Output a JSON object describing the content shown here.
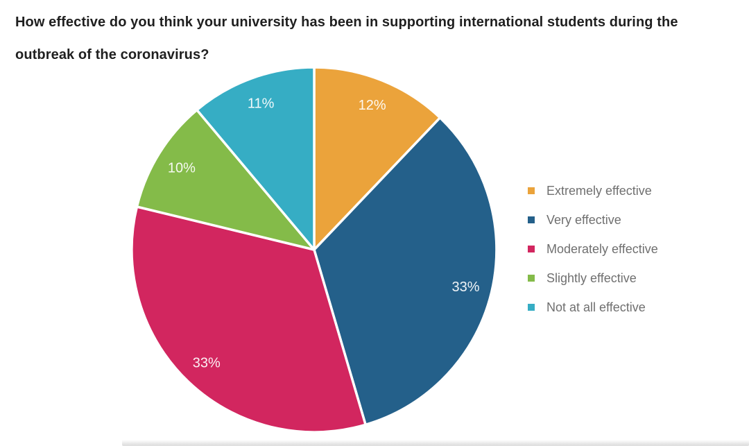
{
  "header": {
    "title_line1": "How effective do you think your university has been in supporting international students during the",
    "title_line2": "outbreak of the coronavirus?"
  },
  "chart_data": {
    "type": "pie",
    "title": "How effective do you think your university has been in supporting international students during the outbreak of the coronavirus?",
    "labels": [
      "Extremely effective",
      "Very effective",
      "Moderately effective",
      "Slightly effective",
      "Not at all effective"
    ],
    "values": [
      12,
      33,
      33,
      10,
      11
    ],
    "value_labels": [
      "12%",
      "33%",
      "33%",
      "10%",
      "11%"
    ],
    "unit": "percent",
    "colors": [
      "#EBA33B",
      "#24608A",
      "#D2265F",
      "#84BB49",
      "#36ADC4"
    ],
    "slice_border_color": "#FFFFFF",
    "slice_label_color": "#FFFFFF",
    "legend_text_color": "#6F6F6F",
    "legend_position": "right",
    "start_angle_deg": 0,
    "direction": "clockwise"
  }
}
